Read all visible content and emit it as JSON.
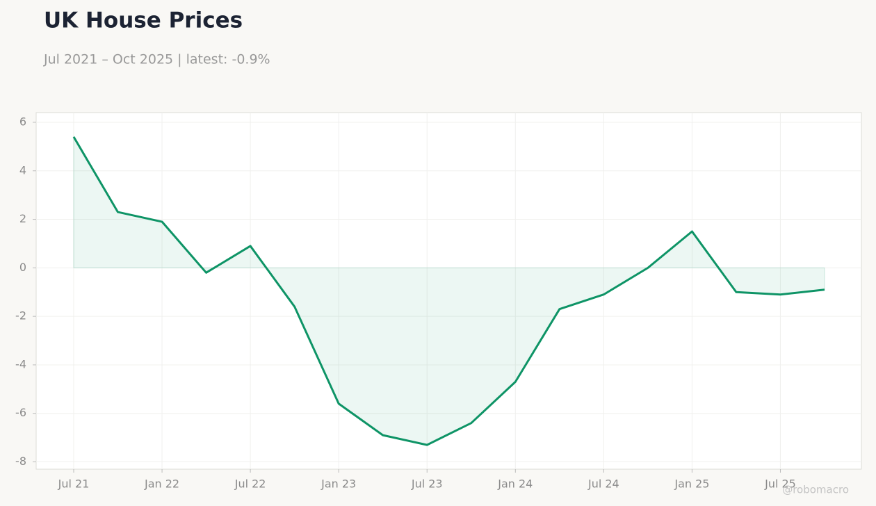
{
  "chart_data": {
    "type": "line",
    "title": "UK House Prices",
    "subtitle": "Jul 2021 – Oct 2025 | latest: -0.9%",
    "watermark": "@robomacro",
    "x": [
      "2021-07",
      "2021-10",
      "2022-01",
      "2022-04",
      "2022-07",
      "2022-10",
      "2023-01",
      "2023-04",
      "2023-07",
      "2023-10",
      "2024-01",
      "2024-04",
      "2024-07",
      "2024-10",
      "2025-01",
      "2025-04",
      "2025-07",
      "2025-10"
    ],
    "series": [
      {
        "name": "UK House Prices",
        "color": "#0e9466",
        "values": [
          5.4,
          2.3,
          1.9,
          -0.2,
          0.9,
          -1.6,
          -5.6,
          -6.9,
          -7.3,
          -6.4,
          -4.7,
          -1.7,
          -1.1,
          0.0,
          1.5,
          -1.0,
          -1.1,
          -0.9
        ]
      }
    ],
    "xticks": [
      {
        "value": "2021-07",
        "label": "Jul 21"
      },
      {
        "value": "2022-01",
        "label": "Jan 22"
      },
      {
        "value": "2022-07",
        "label": "Jul 22"
      },
      {
        "value": "2023-01",
        "label": "Jan 23"
      },
      {
        "value": "2023-07",
        "label": "Jul 23"
      },
      {
        "value": "2024-01",
        "label": "Jan 24"
      },
      {
        "value": "2024-07",
        "label": "Jul 24"
      },
      {
        "value": "2025-01",
        "label": "Jan 25"
      },
      {
        "value": "2025-07",
        "label": "Jul 25"
      }
    ],
    "ylim": [
      -8.3,
      6.4
    ],
    "yticks": [
      -8,
      -6,
      -4,
      -2,
      0,
      2,
      4,
      6
    ],
    "grid": true,
    "area_fill": true
  }
}
